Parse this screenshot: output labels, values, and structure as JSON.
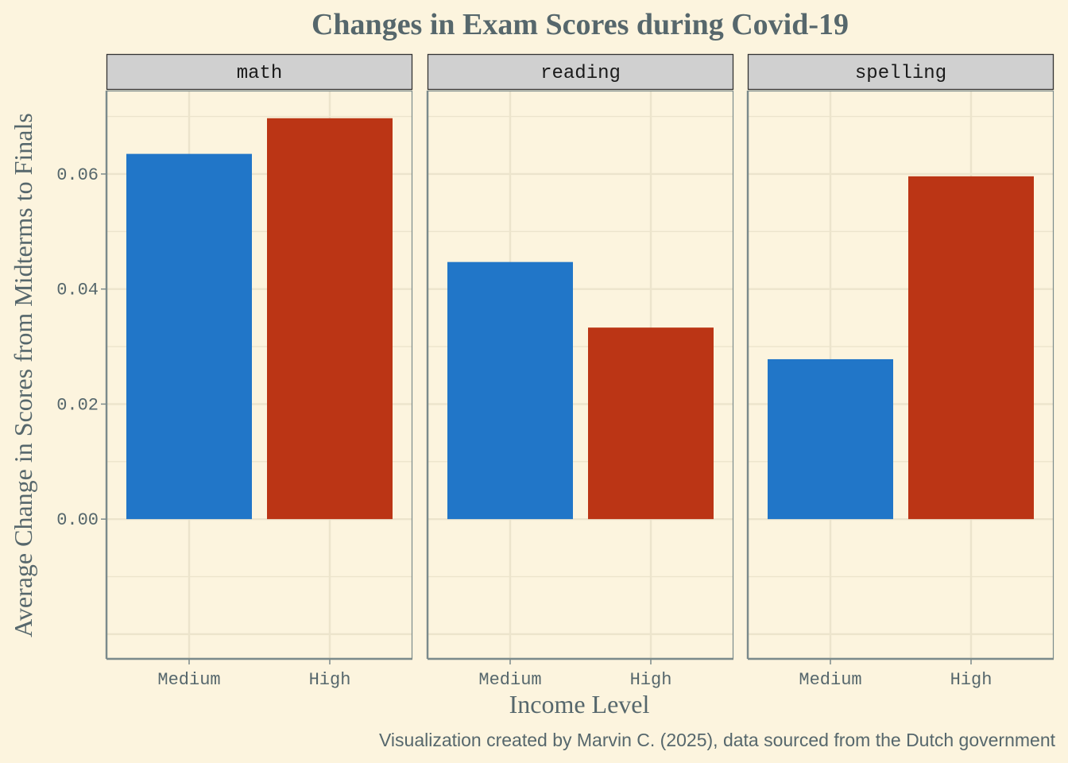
{
  "chart_data": {
    "type": "bar",
    "title": "Changes in Exam Scores during Covid-19",
    "xlabel": "Income Level",
    "ylabel": "Average Change in Scores from Midterms to Finals",
    "caption": "Visualization created by Marvin C. (2025), data sourced from the Dutch government",
    "categories": [
      "Medium",
      "High"
    ],
    "ylim": [
      -0.0243,
      0.0745
    ],
    "yticks": [
      0.0,
      0.02,
      0.04,
      0.06
    ],
    "ytick_labels": [
      "0.00",
      "0.02",
      "0.04",
      "0.06"
    ],
    "grid": true,
    "legend": "none",
    "facet_by": "subject",
    "panels": [
      {
        "name": "math",
        "values": [
          0.0635,
          0.0697
        ]
      },
      {
        "name": "reading",
        "values": [
          0.0447,
          0.0333
        ]
      },
      {
        "name": "spelling",
        "values": [
          0.0278,
          0.0596
        ]
      }
    ],
    "colors": {
      "Medium": "#2176c8",
      "High": "#bb3515",
      "background": "#fcf4de",
      "grid": "#ece4cc",
      "panel_border": "#7b8a8b",
      "strip_fill": "#d0d0d0",
      "strip_border": "#333333"
    }
  }
}
